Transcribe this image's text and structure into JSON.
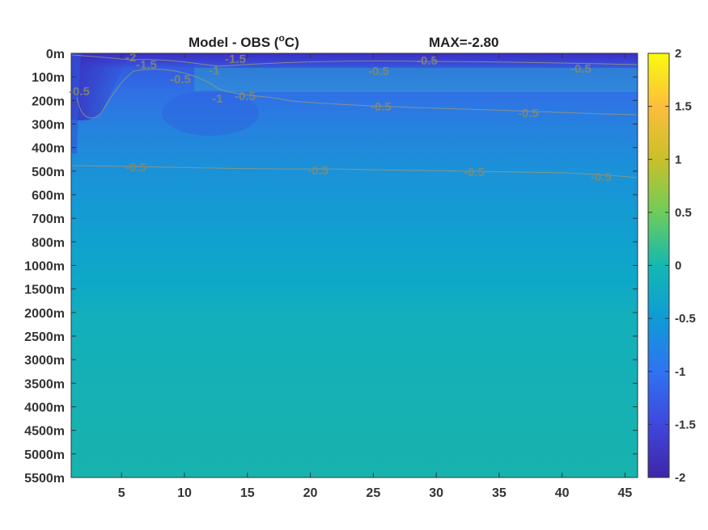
{
  "chart_data": {
    "type": "heatmap",
    "title_left": "Model - OBS (",
    "title_unit_sup": "o",
    "title_unit": "C)",
    "title_right": "MAX=-2.80",
    "y_ticks": [
      "0m",
      "100m",
      "200m",
      "300m",
      "400m",
      "500m",
      "600m",
      "700m",
      "800m",
      "1000m",
      "1500m",
      "2000m",
      "2500m",
      "3000m",
      "3500m",
      "4000m",
      "4500m",
      "5000m",
      "5500m"
    ],
    "x_ticks": [
      5,
      10,
      15,
      20,
      25,
      30,
      35,
      40,
      45
    ],
    "xlim": [
      1,
      46
    ],
    "colorbar": {
      "range": [
        -2,
        2
      ],
      "ticks": [
        "2",
        "1.5",
        "1",
        "0.5",
        "0",
        "-0.5",
        "-1",
        "-1.5",
        "-2"
      ],
      "colormap": "parula"
    },
    "contour_labels": [
      "-2",
      "-1.5",
      "-1.5",
      "-1",
      "-1",
      "-0.5",
      "-0.5",
      "-0.5",
      "-0.5",
      "-0.5",
      "-0.5",
      "-0.5",
      "-0.5",
      "-0.5",
      "-0.5",
      "-0.5",
      "-0.5"
    ]
  },
  "colors": {
    "cold_surface": "#3d3bc9",
    "upper_layer": "#2f6ee0",
    "mid_layer": "#1b95d6",
    "deep_layer": "#10a9c6",
    "bottom_layer": "#18b5ae",
    "contour": "#9a9a7a"
  }
}
